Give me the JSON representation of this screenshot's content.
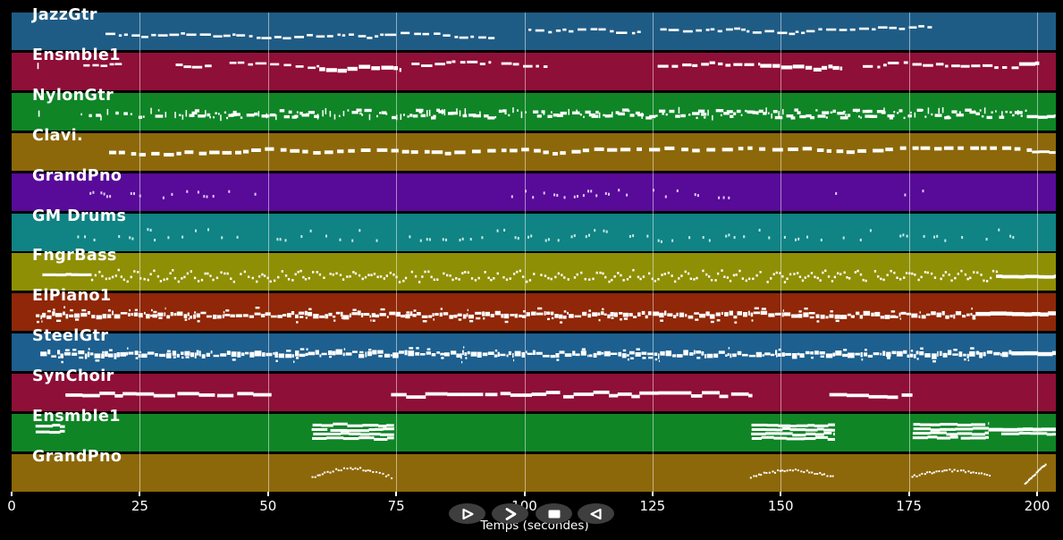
{
  "app": {
    "background": "#000000",
    "note_color_default": "#ffffff",
    "grid_color": "rgba(255,255,255,0.5)"
  },
  "axis": {
    "label": "Temps (secondes)",
    "ticks": [
      0,
      25,
      50,
      75,
      100,
      125,
      150,
      175,
      200
    ],
    "tick_color": "#ffffff",
    "time_range": [
      0,
      203.7
    ]
  },
  "transport": {
    "buttons": [
      {
        "name": "play",
        "glyph": "triangle-right-outline"
      },
      {
        "name": "fast-forward",
        "glyph": "chevron-right"
      },
      {
        "name": "stop",
        "glyph": "filled-square"
      },
      {
        "name": "rewind",
        "glyph": "triangle-left-outline"
      }
    ]
  },
  "tracks": [
    {
      "name": "JazzGtr",
      "color": "#1f5c85",
      "note_color": "#ffffff",
      "segments": [
        {
          "type": "melody",
          "t0": 18.3,
          "t1": 95,
          "y": 0.52,
          "amp": 0.17,
          "h": 2.6
        },
        {
          "type": "melody",
          "t0": 100.8,
          "t1": 123,
          "y": 0.5,
          "amp": 0.15,
          "h": 2.6
        },
        {
          "type": "melody",
          "t0": 126.5,
          "t1": 179.5,
          "y": 0.5,
          "amp": 0.17,
          "h": 2.6
        }
      ]
    },
    {
      "name": "Ensmble1",
      "color": "#8e0f38",
      "note_color": "#ffffff",
      "segments": [
        {
          "type": "tick",
          "t0": 5,
          "y": 0.35
        },
        {
          "type": "melody",
          "t0": 14,
          "t1": 21.5,
          "y": 0.3,
          "amp": 0.1,
          "h": 2.6
        },
        {
          "type": "melody",
          "t0": 32,
          "t1": 39,
          "y": 0.3,
          "amp": 0.09,
          "h": 2.9
        },
        {
          "type": "melody",
          "t0": 42.5,
          "t1": 60,
          "y": 0.32,
          "amp": 0.13,
          "h": 2.6
        },
        {
          "type": "melody",
          "t0": 60,
          "t1": 76,
          "y": 0.38,
          "amp": 0.14,
          "h": 4.4,
          "dense": true
        },
        {
          "type": "melody",
          "t0": 78,
          "t1": 93.5,
          "y": 0.33,
          "amp": 0.1,
          "h": 2.9
        },
        {
          "type": "melody",
          "t0": 95.5,
          "t1": 104.5,
          "y": 0.3,
          "amp": 0.09,
          "h": 2.9
        },
        {
          "type": "melody",
          "t0": 126,
          "t1": 146,
          "y": 0.32,
          "amp": 0.13,
          "h": 3.2
        },
        {
          "type": "melody",
          "t0": 146,
          "t1": 162,
          "y": 0.38,
          "amp": 0.14,
          "h": 4.2,
          "dense": true
        },
        {
          "type": "melody",
          "t0": 166,
          "t1": 196.5,
          "y": 0.33,
          "amp": 0.11,
          "h": 3
        },
        {
          "type": "line",
          "t0": 196.5,
          "t1": 200.3,
          "y": 0.3,
          "h": 4
        }
      ]
    },
    {
      "name": "NylonGtr",
      "color": "#0f8526",
      "note_color": "#ffffff",
      "segments": [
        {
          "type": "tick",
          "t0": 5.2,
          "y": 0.55
        },
        {
          "type": "strum",
          "t0": 12.5,
          "t1": 28,
          "y": 0.56,
          "sparse": true
        },
        {
          "type": "strum",
          "t0": 28,
          "t1": 198,
          "y": 0.56
        },
        {
          "type": "line",
          "t0": 198,
          "t1": 203.5,
          "y": 0.63,
          "h": 3.5
        }
      ]
    },
    {
      "name": "Clavi.",
      "color": "#8d680a",
      "note_color": "#ffffff",
      "segments": [
        {
          "type": "chunks",
          "t0": 19,
          "t1": 199,
          "y": 0.54
        },
        {
          "type": "line",
          "t0": 199,
          "t1": 203.5,
          "y": 0.5,
          "h": 3
        }
      ]
    },
    {
      "name": "GrandPno",
      "color": "#580a99",
      "note_color": "#dcc8f0",
      "segments": [
        {
          "type": "dots",
          "t0": 12,
          "t1": 48.5,
          "step": [
            0.9,
            3.2
          ],
          "p": 0.75,
          "y": 0.55
        },
        {
          "type": "dots",
          "t0": 94,
          "t1": 143.5,
          "step": [
            0.8,
            2.8
          ],
          "p": 0.8,
          "y": 0.55
        },
        {
          "type": "dots",
          "t0": 157,
          "t1": 180,
          "step": [
            1.5,
            4.5
          ],
          "p": 0.7,
          "y": 0.52
        }
      ]
    },
    {
      "name": "GM Drums",
      "color": "#108384",
      "note_color": "#c2e9e5",
      "segments": [
        {
          "type": "dots",
          "t0": 11,
          "t1": 195.5,
          "step": [
            1.2,
            3.4
          ],
          "p": 0.82,
          "y": 0.64,
          "levels": [
            0.44,
            0.62,
            0.7
          ]
        }
      ]
    },
    {
      "name": "FngrBass",
      "color": "#8f8f06",
      "note_color": "#ffffff",
      "segments": [
        {
          "type": "line",
          "t0": 6,
          "t1": 15.5,
          "y": 0.58,
          "h": 3.2
        },
        {
          "type": "bass",
          "t0": 15.5,
          "t1": 192,
          "y": 0.62
        },
        {
          "type": "line",
          "t0": 192,
          "t1": 203.8,
          "y": 0.62,
          "h": 3.8
        }
      ]
    },
    {
      "name": "ElPiano1",
      "color": "#8f2708",
      "note_color": "#ffffff",
      "segments": [
        {
          "type": "dense",
          "t0": 4.7,
          "t1": 188,
          "y": 0.58
        },
        {
          "type": "line",
          "t0": 188,
          "t1": 203.8,
          "y": 0.55,
          "h": 4.5
        }
      ]
    },
    {
      "name": "SteelGtr",
      "color": "#1d5f8e",
      "note_color": "#ffffff",
      "segments": [
        {
          "type": "dense",
          "t0": 5.6,
          "t1": 195,
          "y": 0.55,
          "tall": true
        },
        {
          "type": "line",
          "t0": 195,
          "t1": 203.8,
          "y": 0.53,
          "h": 4.5
        }
      ]
    },
    {
      "name": "SynChoir",
      "color": "#8e0f38",
      "note_color": "#ffffff",
      "segments": [
        {
          "type": "steps",
          "t0": 10.5,
          "t1": 50.6,
          "y": 0.57
        },
        {
          "type": "steps",
          "t0": 74,
          "t1": 144.4,
          "y": 0.56
        },
        {
          "type": "steps",
          "t0": 159.5,
          "t1": 175.6,
          "y": 0.56
        }
      ]
    },
    {
      "name": "Ensmble1",
      "color": "#0f8526",
      "note_color": "#ffffff",
      "segments": [
        {
          "type": "chords",
          "t0": 4.4,
          "t1": 10.3,
          "y": 0.42,
          "lines": 2
        },
        {
          "type": "chords",
          "t0": 58.5,
          "t1": 74.5,
          "y": 0.5,
          "lines": 4
        },
        {
          "type": "chords",
          "t0": 144,
          "t1": 160.5,
          "y": 0.5,
          "lines": 4
        },
        {
          "type": "chords",
          "t0": 175.5,
          "t1": 190.5,
          "y": 0.48,
          "lines": 4
        },
        {
          "type": "line",
          "t0": 190.5,
          "t1": 203.8,
          "y": 0.42,
          "h": 4
        },
        {
          "type": "line",
          "t0": 193,
          "t1": 203.8,
          "y": 0.53,
          "h": 3
        }
      ]
    },
    {
      "name": "GrandPno",
      "color": "#8d680a",
      "note_color": "#ffffff",
      "segments": [
        {
          "type": "arc",
          "t0": 58.5,
          "t1": 74,
          "y": 0.62,
          "rise": 10
        },
        {
          "type": "arc",
          "t0": 144,
          "t1": 160,
          "y": 0.6,
          "rise": 7
        },
        {
          "type": "arc",
          "t0": 175.5,
          "t1": 191,
          "y": 0.6,
          "rise": 7
        },
        {
          "type": "rise",
          "t0": 197.5,
          "t1": 201.5,
          "y": 0.62
        }
      ]
    }
  ]
}
